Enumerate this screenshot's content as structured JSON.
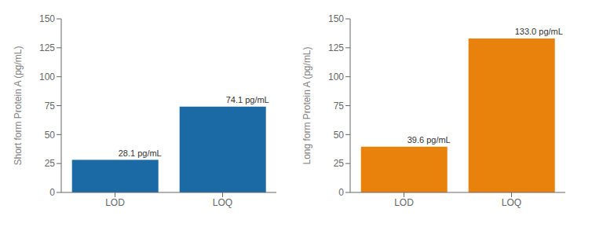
{
  "chart_data": [
    {
      "type": "bar",
      "categories": [
        "LOD",
        "LOQ"
      ],
      "values": [
        28.1,
        74.1
      ],
      "value_labels": [
        "28.1 pg/mL",
        "74.1 pg/mL"
      ],
      "data_labels": true,
      "color": "#1B6AA5",
      "ylabel": "Short form Protein A (pg/mL)",
      "ylim": [
        0,
        150
      ],
      "yticks": [
        0,
        25,
        50,
        75,
        100,
        125,
        150
      ],
      "grid": false
    },
    {
      "type": "bar",
      "categories": [
        "LOD",
        "LOQ"
      ],
      "values": [
        39.6,
        133.0
      ],
      "value_labels": [
        "39.6 pg/mL",
        "133.0 pg/mL"
      ],
      "data_labels": true,
      "color": "#E8820C",
      "ylabel": "Long form Protein A (pg/mL)",
      "ylim": [
        0,
        150
      ],
      "yticks": [
        0,
        25,
        50,
        75,
        100,
        125,
        150
      ],
      "grid": false
    }
  ]
}
